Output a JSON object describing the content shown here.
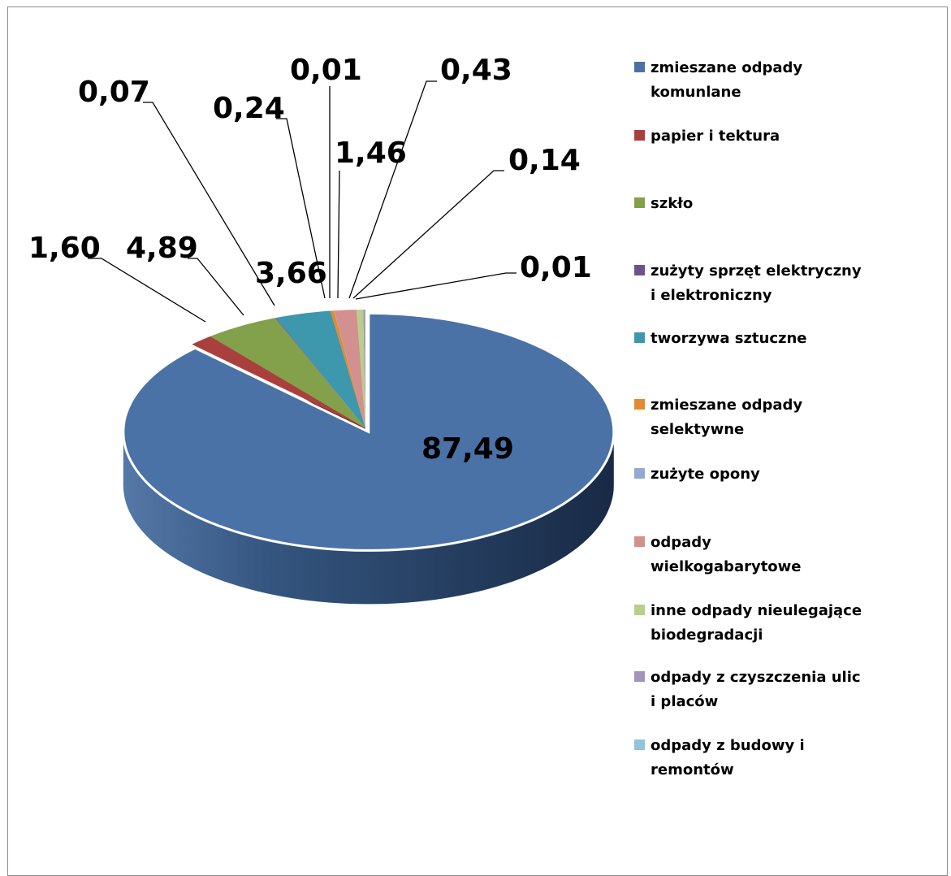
{
  "chart_data": {
    "type": "pie",
    "title": "",
    "series": [
      {
        "name": "zmieszane odpady komunlane",
        "label": "87,49",
        "value": 87.49,
        "color": "#4a72a6"
      },
      {
        "name": "papier i tektura",
        "label": "1,60",
        "value": 1.6,
        "color": "#a9403d"
      },
      {
        "name": "szkło",
        "label": "4,89",
        "value": 4.89,
        "color": "#83a04a"
      },
      {
        "name": "zużyty sprzęt elektryczny i elektroniczny",
        "label": "0,07",
        "value": 0.07,
        "color": "#6d5190"
      },
      {
        "name": "tworzywa sztuczne",
        "label": "3,66",
        "value": 3.66,
        "color": "#3d97ad"
      },
      {
        "name": "zmieszane odpady selektywne",
        "label": "0,24",
        "value": 0.24,
        "color": "#e38a31"
      },
      {
        "name": "zużyte opony",
        "label": "0,01",
        "value": 0.01,
        "color": "#94a9cf"
      },
      {
        "name": "odpady wielkogabarytowe",
        "label": "1,46",
        "value": 1.46,
        "color": "#d2908e"
      },
      {
        "name": "inne odpady nieulegające biodegradacji",
        "label": "0,43",
        "value": 0.43,
        "color": "#b7cf8b"
      },
      {
        "name": "odpady z czyszczenia ulic i placów",
        "label": "0,14",
        "value": 0.14,
        "color": "#a494ba"
      },
      {
        "name": "odpady z budowy i remontów",
        "label": "0,01",
        "value": 0.01,
        "color": "#92c3d8"
      }
    ],
    "legend_position": "right",
    "legend_lines": [
      [
        "zmieszane odpady",
        "komunlane"
      ],
      [
        "papier i tektura"
      ],
      [
        "szkło"
      ],
      [
        "zużyty sprzęt elektryczny",
        "i elektroniczny"
      ],
      [
        "tworzywa sztuczne"
      ],
      [
        "zmieszane odpady",
        "selektywne"
      ],
      [
        "zużyte opony"
      ],
      [
        "odpady",
        "wielkogabarytowe"
      ],
      [
        "inne odpady nieulegające",
        "biodegradacji"
      ],
      [
        "odpady z czyszczenia ulic",
        "i placów"
      ],
      [
        "odpady z budowy i",
        "remontów"
      ]
    ]
  }
}
